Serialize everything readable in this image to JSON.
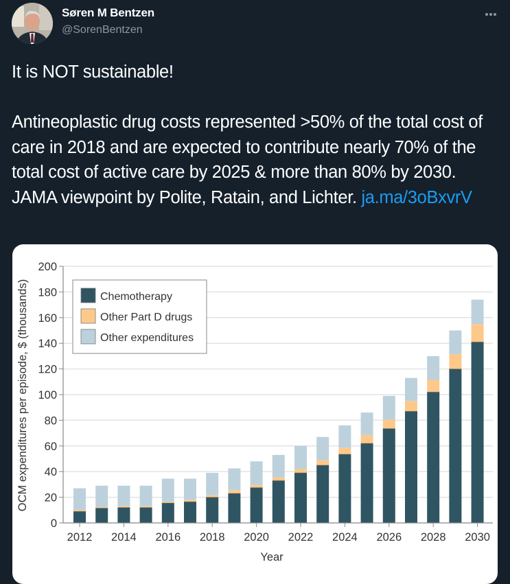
{
  "tweet": {
    "author_name": "Søren M Bentzen",
    "author_handle": "@SorenBentzen",
    "avatar_icon": "profile-photo",
    "more_icon": "more-horizontal-icon",
    "text_line1": "It is NOT sustainable!",
    "text_body": "Antineoplastic drug costs represented >50% of the total cost of care in 2018 and are expected to contribute nearly 70% of the total cost of active care by 2025 & more than 80% by 2030. JAMA viewpoint by Polite, Ratain, and Lichter.",
    "link_text": "ja.ma/3oBxvrV"
  },
  "colors": {
    "background": "#15202b",
    "link": "#1d9bf0",
    "secondary_text": "#8b98a5"
  },
  "chart_data": {
    "type": "bar",
    "stacked": true,
    "title": "",
    "xlabel": "Year",
    "ylabel": "OCM expenditures per episode, $ (thousands)",
    "ylim": [
      0,
      200
    ],
    "yticks": [
      0,
      20,
      40,
      60,
      80,
      100,
      120,
      140,
      160,
      180,
      200
    ],
    "xtick_labels": [
      "2012",
      "2014",
      "2016",
      "2018",
      "2020",
      "2022",
      "2024",
      "2026",
      "2028",
      "2030"
    ],
    "grid": true,
    "legend_position": "top-left",
    "categories": [
      "2012",
      "2013",
      "2014",
      "2015",
      "2016",
      "2017",
      "2018",
      "2019",
      "2020",
      "2021",
      "2022",
      "2023",
      "2024",
      "2025",
      "2026",
      "2027",
      "2028",
      "2029",
      "2030"
    ],
    "series": [
      {
        "name": "Chemotherapy",
        "color": "#2f5563",
        "values": [
          9,
          11.5,
          12,
          12,
          15.5,
          16.5,
          20,
          23,
          27.5,
          33,
          39,
          45,
          53.5,
          62,
          73.5,
          87,
          102,
          120,
          141
        ]
      },
      {
        "name": "Other Part D drugs",
        "color": "#fdc98a",
        "values": [
          1,
          0.8,
          1,
          1,
          1,
          1.5,
          1.5,
          2.5,
          2,
          2.5,
          3,
          4,
          5,
          6.5,
          7,
          8,
          9.5,
          11.5,
          14
        ]
      },
      {
        "name": "Other expenditures",
        "color": "#bdd1dc",
        "values": [
          17,
          16.7,
          16,
          16,
          18,
          16.5,
          17.5,
          17,
          18.5,
          17.5,
          18,
          18,
          17.5,
          17.5,
          18.5,
          18,
          18.5,
          18.5,
          19
        ]
      }
    ]
  }
}
